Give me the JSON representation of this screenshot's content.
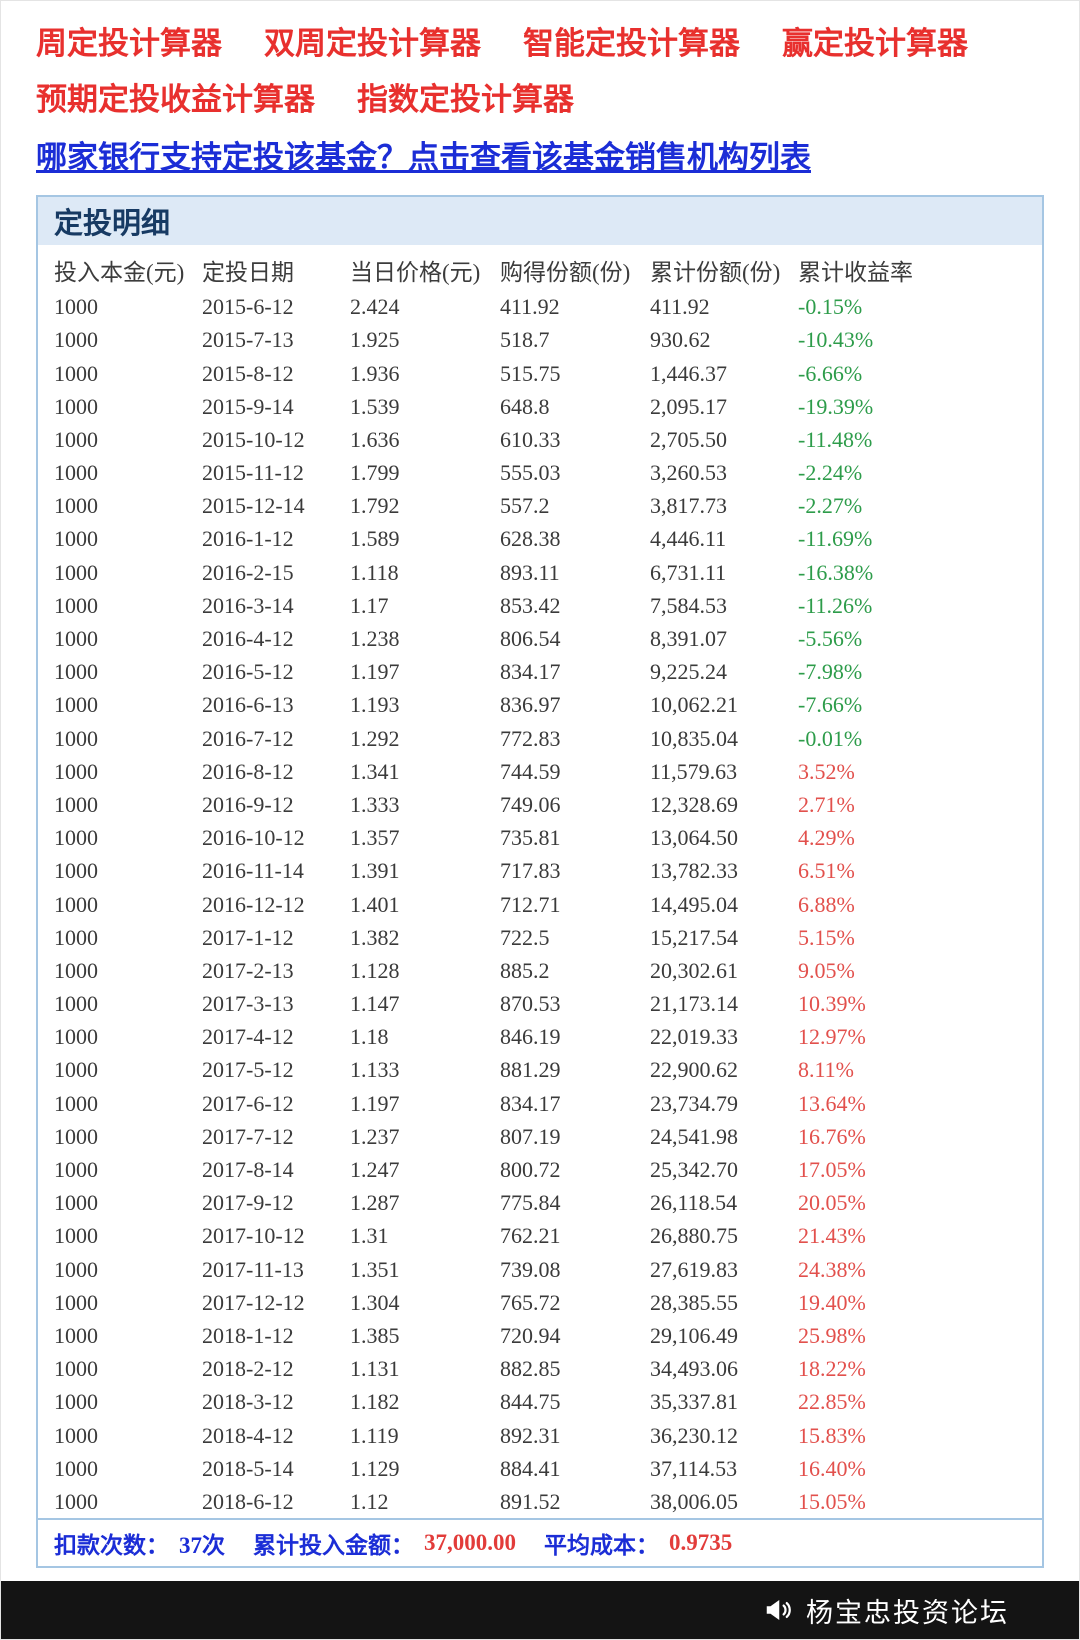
{
  "colors": {
    "link_red": "#e8302e",
    "link_blue": "#1b2dd6",
    "panel_border": "#a5c6e3",
    "panel_header_bg": "#dde9f6",
    "panel_title": "#173a63",
    "header_text": "#3c3c3c",
    "cell_text": "#3a3a3a",
    "negative_green": "#2d9c4a",
    "positive_red": "#e2504c",
    "summary_blue": "#1b2dd6",
    "summary_red": "#e23c3a",
    "brand_bar_bg": "#141414",
    "brand_text": "#ffffff"
  },
  "top_links": {
    "calculators": [
      "周定投计算器",
      "双周定投计算器",
      "智能定投计算器",
      "赢定投计算器",
      "预期定投收益计算器",
      "指数定投计算器"
    ],
    "bank_link": "哪家银行支持定投该基金？点击查看该基金销售机构列表"
  },
  "panel": {
    "title": "定投明细"
  },
  "table": {
    "headers": [
      "投入本金(元)",
      "定投日期",
      "当日价格(元)",
      "购得份额(份)",
      "累计份额(份)",
      "累计收益率"
    ],
    "rows": [
      [
        "1000",
        "2015-6-12",
        "2.424",
        "411.92",
        "411.92",
        "-0.15%"
      ],
      [
        "1000",
        "2015-7-13",
        "1.925",
        "518.7",
        "930.62",
        "-10.43%"
      ],
      [
        "1000",
        "2015-8-12",
        "1.936",
        "515.75",
        "1,446.37",
        "-6.66%"
      ],
      [
        "1000",
        "2015-9-14",
        "1.539",
        "648.8",
        "2,095.17",
        "-19.39%"
      ],
      [
        "1000",
        "2015-10-12",
        "1.636",
        "610.33",
        "2,705.50",
        "-11.48%"
      ],
      [
        "1000",
        "2015-11-12",
        "1.799",
        "555.03",
        "3,260.53",
        "-2.24%"
      ],
      [
        "1000",
        "2015-12-14",
        "1.792",
        "557.2",
        "3,817.73",
        "-2.27%"
      ],
      [
        "1000",
        "2016-1-12",
        "1.589",
        "628.38",
        "4,446.11",
        "-11.69%"
      ],
      [
        "1000",
        "2016-2-15",
        "1.118",
        "893.11",
        "6,731.11",
        "-16.38%"
      ],
      [
        "1000",
        "2016-3-14",
        "1.17",
        "853.42",
        "7,584.53",
        "-11.26%"
      ],
      [
        "1000",
        "2016-4-12",
        "1.238",
        "806.54",
        "8,391.07",
        "-5.56%"
      ],
      [
        "1000",
        "2016-5-12",
        "1.197",
        "834.17",
        "9,225.24",
        "-7.98%"
      ],
      [
        "1000",
        "2016-6-13",
        "1.193",
        "836.97",
        "10,062.21",
        "-7.66%"
      ],
      [
        "1000",
        "2016-7-12",
        "1.292",
        "772.83",
        "10,835.04",
        "-0.01%"
      ],
      [
        "1000",
        "2016-8-12",
        "1.341",
        "744.59",
        "11,579.63",
        "3.52%"
      ],
      [
        "1000",
        "2016-9-12",
        "1.333",
        "749.06",
        "12,328.69",
        "2.71%"
      ],
      [
        "1000",
        "2016-10-12",
        "1.357",
        "735.81",
        "13,064.50",
        "4.29%"
      ],
      [
        "1000",
        "2016-11-14",
        "1.391",
        "717.83",
        "13,782.33",
        "6.51%"
      ],
      [
        "1000",
        "2016-12-12",
        "1.401",
        "712.71",
        "14,495.04",
        "6.88%"
      ],
      [
        "1000",
        "2017-1-12",
        "1.382",
        "722.5",
        "15,217.54",
        "5.15%"
      ],
      [
        "1000",
        "2017-2-13",
        "1.128",
        "885.2",
        "20,302.61",
        "9.05%"
      ],
      [
        "1000",
        "2017-3-13",
        "1.147",
        "870.53",
        "21,173.14",
        "10.39%"
      ],
      [
        "1000",
        "2017-4-12",
        "1.18",
        "846.19",
        "22,019.33",
        "12.97%"
      ],
      [
        "1000",
        "2017-5-12",
        "1.133",
        "881.29",
        "22,900.62",
        "8.11%"
      ],
      [
        "1000",
        "2017-6-12",
        "1.197",
        "834.17",
        "23,734.79",
        "13.64%"
      ],
      [
        "1000",
        "2017-7-12",
        "1.237",
        "807.19",
        "24,541.98",
        "16.76%"
      ],
      [
        "1000",
        "2017-8-14",
        "1.247",
        "800.72",
        "25,342.70",
        "17.05%"
      ],
      [
        "1000",
        "2017-9-12",
        "1.287",
        "775.84",
        "26,118.54",
        "20.05%"
      ],
      [
        "1000",
        "2017-10-12",
        "1.31",
        "762.21",
        "26,880.75",
        "21.43%"
      ],
      [
        "1000",
        "2017-11-13",
        "1.351",
        "739.08",
        "27,619.83",
        "24.38%"
      ],
      [
        "1000",
        "2017-12-12",
        "1.304",
        "765.72",
        "28,385.55",
        "19.40%"
      ],
      [
        "1000",
        "2018-1-12",
        "1.385",
        "720.94",
        "29,106.49",
        "25.98%"
      ],
      [
        "1000",
        "2018-2-12",
        "1.131",
        "882.85",
        "34,493.06",
        "18.22%"
      ],
      [
        "1000",
        "2018-3-12",
        "1.182",
        "844.75",
        "35,337.81",
        "22.85%"
      ],
      [
        "1000",
        "2018-4-12",
        "1.119",
        "892.31",
        "36,230.12",
        "15.83%"
      ],
      [
        "1000",
        "2018-5-14",
        "1.129",
        "884.41",
        "37,114.53",
        "16.40%"
      ],
      [
        "1000",
        "2018-6-12",
        "1.12",
        "891.52",
        "38,006.05",
        "15.05%"
      ]
    ]
  },
  "summary": {
    "items": [
      {
        "label": "扣款次数：",
        "value": "37次",
        "value_color": "blue"
      },
      {
        "label": "累计投入金额：",
        "value": "37,000.00",
        "value_color": "red"
      },
      {
        "label": "平均成本：",
        "value": "0.9735",
        "value_color": "red"
      }
    ]
  },
  "footer": {
    "brand": "杨宝忠投资论坛",
    "icon": "megaphone-icon"
  }
}
